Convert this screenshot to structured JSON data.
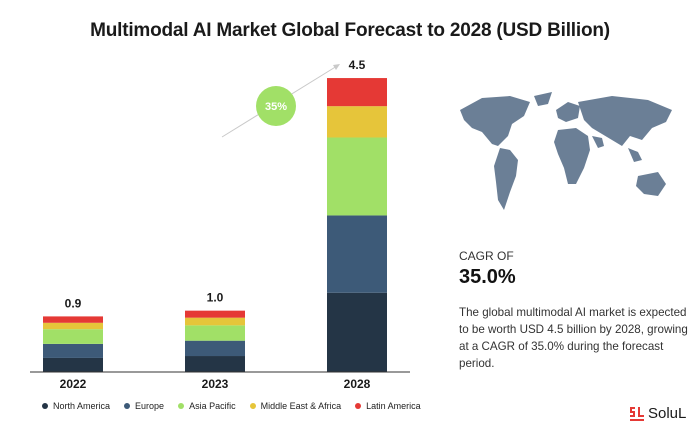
{
  "title": "Multimodal AI Market Global Forecast to 2028 (USD Billion)",
  "cagr": {
    "label": "CAGR OF",
    "value": "35.0%",
    "bubble": "35%"
  },
  "description": "The global multimodal AI market is expected to be worth USD 4.5 billion by 2028, growing at a CAGR of 35.0% during the forecast period.",
  "brand": {
    "name": "SoluL",
    "icon": "soluLab-logo-icon"
  },
  "colors": {
    "north_america": "#243546",
    "europe": "#3d5a78",
    "asia_pacific": "#a1e067",
    "middle_east_africa": "#e6c53a",
    "latin_america": "#e53935",
    "bubble": "#a1e067",
    "map": "#6b7f96"
  },
  "chart_data": {
    "type": "bar",
    "stacked": true,
    "categories": [
      "2022",
      "2023",
      "2028"
    ],
    "totals": [
      "0.9",
      "1.0",
      "4.5"
    ],
    "series": [
      {
        "name": "North America",
        "values": [
          0.22,
          0.25,
          1.24
        ]
      },
      {
        "name": "Europe",
        "values": [
          0.22,
          0.24,
          1.21
        ]
      },
      {
        "name": "Asia Pacific",
        "values": [
          0.23,
          0.24,
          1.22
        ]
      },
      {
        "name": "Middle East & Africa",
        "values": [
          0.1,
          0.12,
          0.49
        ]
      },
      {
        "name": "Latin America",
        "values": [
          0.1,
          0.11,
          0.44
        ]
      }
    ],
    "legend_position": "bottom",
    "grid": false
  }
}
